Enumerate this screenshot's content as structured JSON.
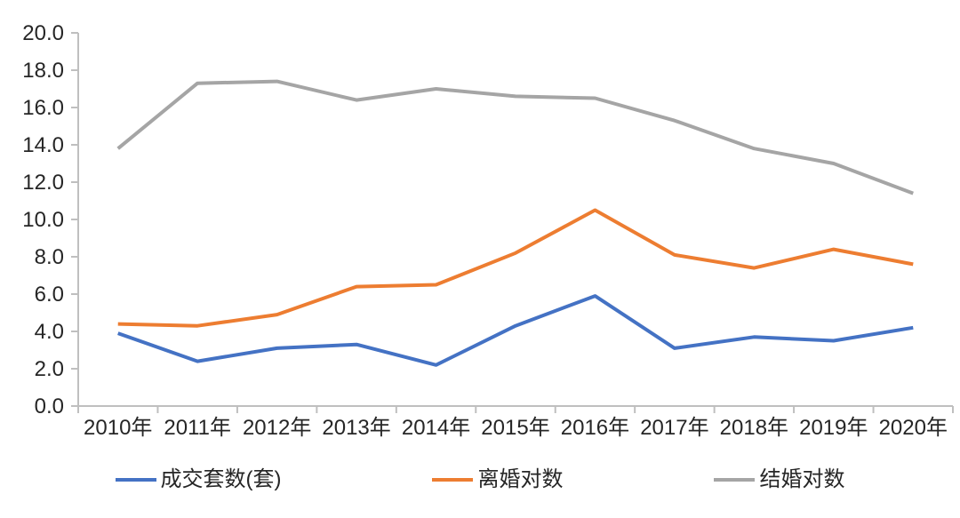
{
  "chart_data": {
    "type": "line",
    "title": "",
    "xlabel": "",
    "ylabel": "",
    "categories": [
      "2010年",
      "2011年",
      "2012年",
      "2013年",
      "2014年",
      "2015年",
      "2016年",
      "2017年",
      "2018年",
      "2019年",
      "2020年"
    ],
    "series": [
      {
        "name": "成交套数(套)",
        "color": "#4472C4",
        "values": [
          3.9,
          2.4,
          3.1,
          3.3,
          2.2,
          4.3,
          5.9,
          3.1,
          3.7,
          3.5,
          4.2
        ]
      },
      {
        "name": "离婚对数",
        "color": "#ED7D31",
        "values": [
          4.4,
          4.3,
          4.9,
          6.4,
          6.5,
          8.2,
          10.5,
          8.1,
          7.4,
          8.4,
          7.6
        ]
      },
      {
        "name": "结婚对数",
        "color": "#A5A5A5",
        "values": [
          13.8,
          17.3,
          17.4,
          16.4,
          17.0,
          16.6,
          16.5,
          15.3,
          13.8,
          13.0,
          11.4
        ]
      }
    ],
    "ylim": [
      0,
      20
    ],
    "ytick_step": 2,
    "yticks": [
      "0.0",
      "2.0",
      "4.0",
      "6.0",
      "8.0",
      "10.0",
      "12.0",
      "14.0",
      "16.0",
      "18.0",
      "20.0"
    ],
    "grid": false,
    "legend_position": "bottom"
  },
  "style": {
    "axis_color": "#BFBFBF",
    "text_color": "#262626",
    "background": "#FFFFFF"
  }
}
